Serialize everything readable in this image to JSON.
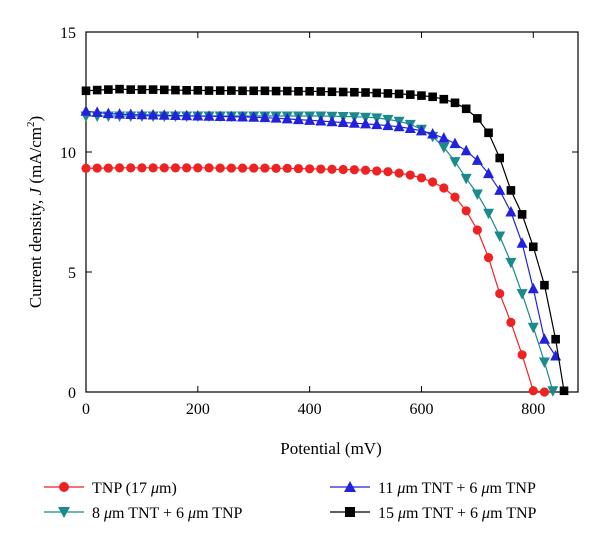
{
  "chart_data": {
    "type": "line",
    "title": "",
    "xlabel": "Potential (mV)",
    "ylabel_main": "Current density, ",
    "ylabel_var": "J",
    "ylabel_unit": " (mA/cm",
    "ylabel_sup": "2",
    "ylabel_close": ")",
    "xlim": [
      0,
      880
    ],
    "ylim": [
      0,
      15
    ],
    "xticks": [
      "0",
      "200",
      "400",
      "600",
      "800"
    ],
    "yticks": [
      "0",
      "5",
      "10",
      "15"
    ],
    "grid": false,
    "legend_position": "bottom",
    "series": [
      {
        "name": "TNP (17 μm)",
        "legend": {
          "pre": "TNP (17 ",
          "mu": "μ",
          "post": "m)"
        },
        "color": "#ee2222",
        "marker": "circle",
        "x": [
          0,
          20,
          40,
          60,
          80,
          100,
          120,
          140,
          160,
          180,
          200,
          220,
          240,
          260,
          280,
          300,
          320,
          340,
          360,
          380,
          400,
          420,
          440,
          460,
          480,
          500,
          520,
          540,
          560,
          580,
          600,
          620,
          640,
          660,
          680,
          700,
          720,
          740,
          760,
          780,
          800,
          820
        ],
        "y": [
          9.32,
          9.33,
          9.33,
          9.34,
          9.34,
          9.34,
          9.34,
          9.34,
          9.34,
          9.34,
          9.34,
          9.34,
          9.33,
          9.33,
          9.33,
          9.33,
          9.33,
          9.32,
          9.32,
          9.31,
          9.3,
          9.29,
          9.28,
          9.27,
          9.26,
          9.24,
          9.21,
          9.18,
          9.12,
          9.04,
          8.92,
          8.75,
          8.5,
          8.12,
          7.55,
          6.75,
          5.6,
          4.1,
          2.9,
          1.55,
          0.05,
          0.0
        ]
      },
      {
        "name": "8 μm TNT + 6 μm TNP",
        "legend": {
          "pre": "8 ",
          "mu": "μ",
          "mid": "m TNT + 6 ",
          "mu2": "μ",
          "post": "m TNP"
        },
        "color": "#1a8a8a",
        "marker": "triangle-down",
        "x": [
          0,
          20,
          40,
          60,
          80,
          100,
          120,
          140,
          160,
          180,
          200,
          220,
          240,
          260,
          280,
          300,
          320,
          340,
          360,
          380,
          400,
          420,
          440,
          460,
          480,
          500,
          520,
          540,
          560,
          580,
          600,
          620,
          640,
          660,
          680,
          700,
          720,
          740,
          760,
          780,
          800,
          820,
          835
        ],
        "y": [
          11.5,
          11.5,
          11.5,
          11.5,
          11.5,
          11.5,
          11.5,
          11.5,
          11.5,
          11.5,
          11.5,
          11.5,
          11.5,
          11.5,
          11.5,
          11.5,
          11.5,
          11.5,
          11.5,
          11.5,
          11.5,
          11.5,
          11.49,
          11.48,
          11.47,
          11.45,
          11.42,
          11.36,
          11.28,
          11.15,
          10.95,
          10.65,
          10.2,
          9.6,
          8.9,
          8.25,
          7.45,
          6.5,
          5.4,
          4.1,
          2.7,
          1.25,
          0.05
        ]
      },
      {
        "name": "11 μm TNT + 6 μm TNP",
        "legend": {
          "pre": "11 ",
          "mu": "μ",
          "mid": "m TNT + 6 ",
          "mu2": "μ",
          "post": "m TNP"
        },
        "color": "#2222dd",
        "marker": "triangle-up",
        "x": [
          0,
          20,
          40,
          60,
          80,
          100,
          120,
          140,
          160,
          180,
          200,
          220,
          240,
          260,
          280,
          300,
          320,
          340,
          360,
          380,
          400,
          420,
          440,
          460,
          480,
          500,
          520,
          540,
          560,
          580,
          600,
          620,
          640,
          660,
          680,
          700,
          720,
          740,
          760,
          780,
          800,
          820,
          840
        ],
        "y": [
          11.7,
          11.65,
          11.6,
          11.58,
          11.56,
          11.55,
          11.54,
          11.53,
          11.52,
          11.51,
          11.5,
          11.49,
          11.48,
          11.47,
          11.46,
          11.45,
          11.43,
          11.41,
          11.38,
          11.35,
          11.32,
          11.29,
          11.26,
          11.23,
          11.2,
          11.17,
          11.14,
          11.1,
          11.05,
          10.98,
          10.88,
          10.75,
          10.58,
          10.35,
          10.05,
          9.65,
          9.1,
          8.4,
          7.5,
          6.2,
          4.3,
          2.2,
          1.5
        ]
      },
      {
        "name": "15 μm TNT + 6 μm TNP",
        "legend": {
          "pre": "15 ",
          "mu": "μ",
          "mid": "m TNT + 6 ",
          "mu2": "μ",
          "post": "m TNP"
        },
        "color": "#000000",
        "marker": "square",
        "x": [
          0,
          20,
          40,
          60,
          80,
          100,
          120,
          140,
          160,
          180,
          200,
          220,
          240,
          260,
          280,
          300,
          320,
          340,
          360,
          380,
          400,
          420,
          440,
          460,
          480,
          500,
          520,
          540,
          560,
          580,
          600,
          620,
          640,
          660,
          680,
          700,
          720,
          740,
          760,
          780,
          800,
          820,
          840,
          855
        ],
        "y": [
          12.55,
          12.58,
          12.6,
          12.62,
          12.6,
          12.6,
          12.6,
          12.59,
          12.58,
          12.57,
          12.57,
          12.56,
          12.56,
          12.56,
          12.55,
          12.55,
          12.55,
          12.54,
          12.54,
          12.53,
          12.53,
          12.52,
          12.51,
          12.5,
          12.49,
          12.48,
          12.46,
          12.44,
          12.42,
          12.39,
          12.35,
          12.3,
          12.2,
          12.05,
          11.8,
          11.4,
          10.8,
          9.75,
          8.4,
          7.4,
          6.05,
          4.45,
          2.2,
          0.05
        ]
      }
    ]
  }
}
